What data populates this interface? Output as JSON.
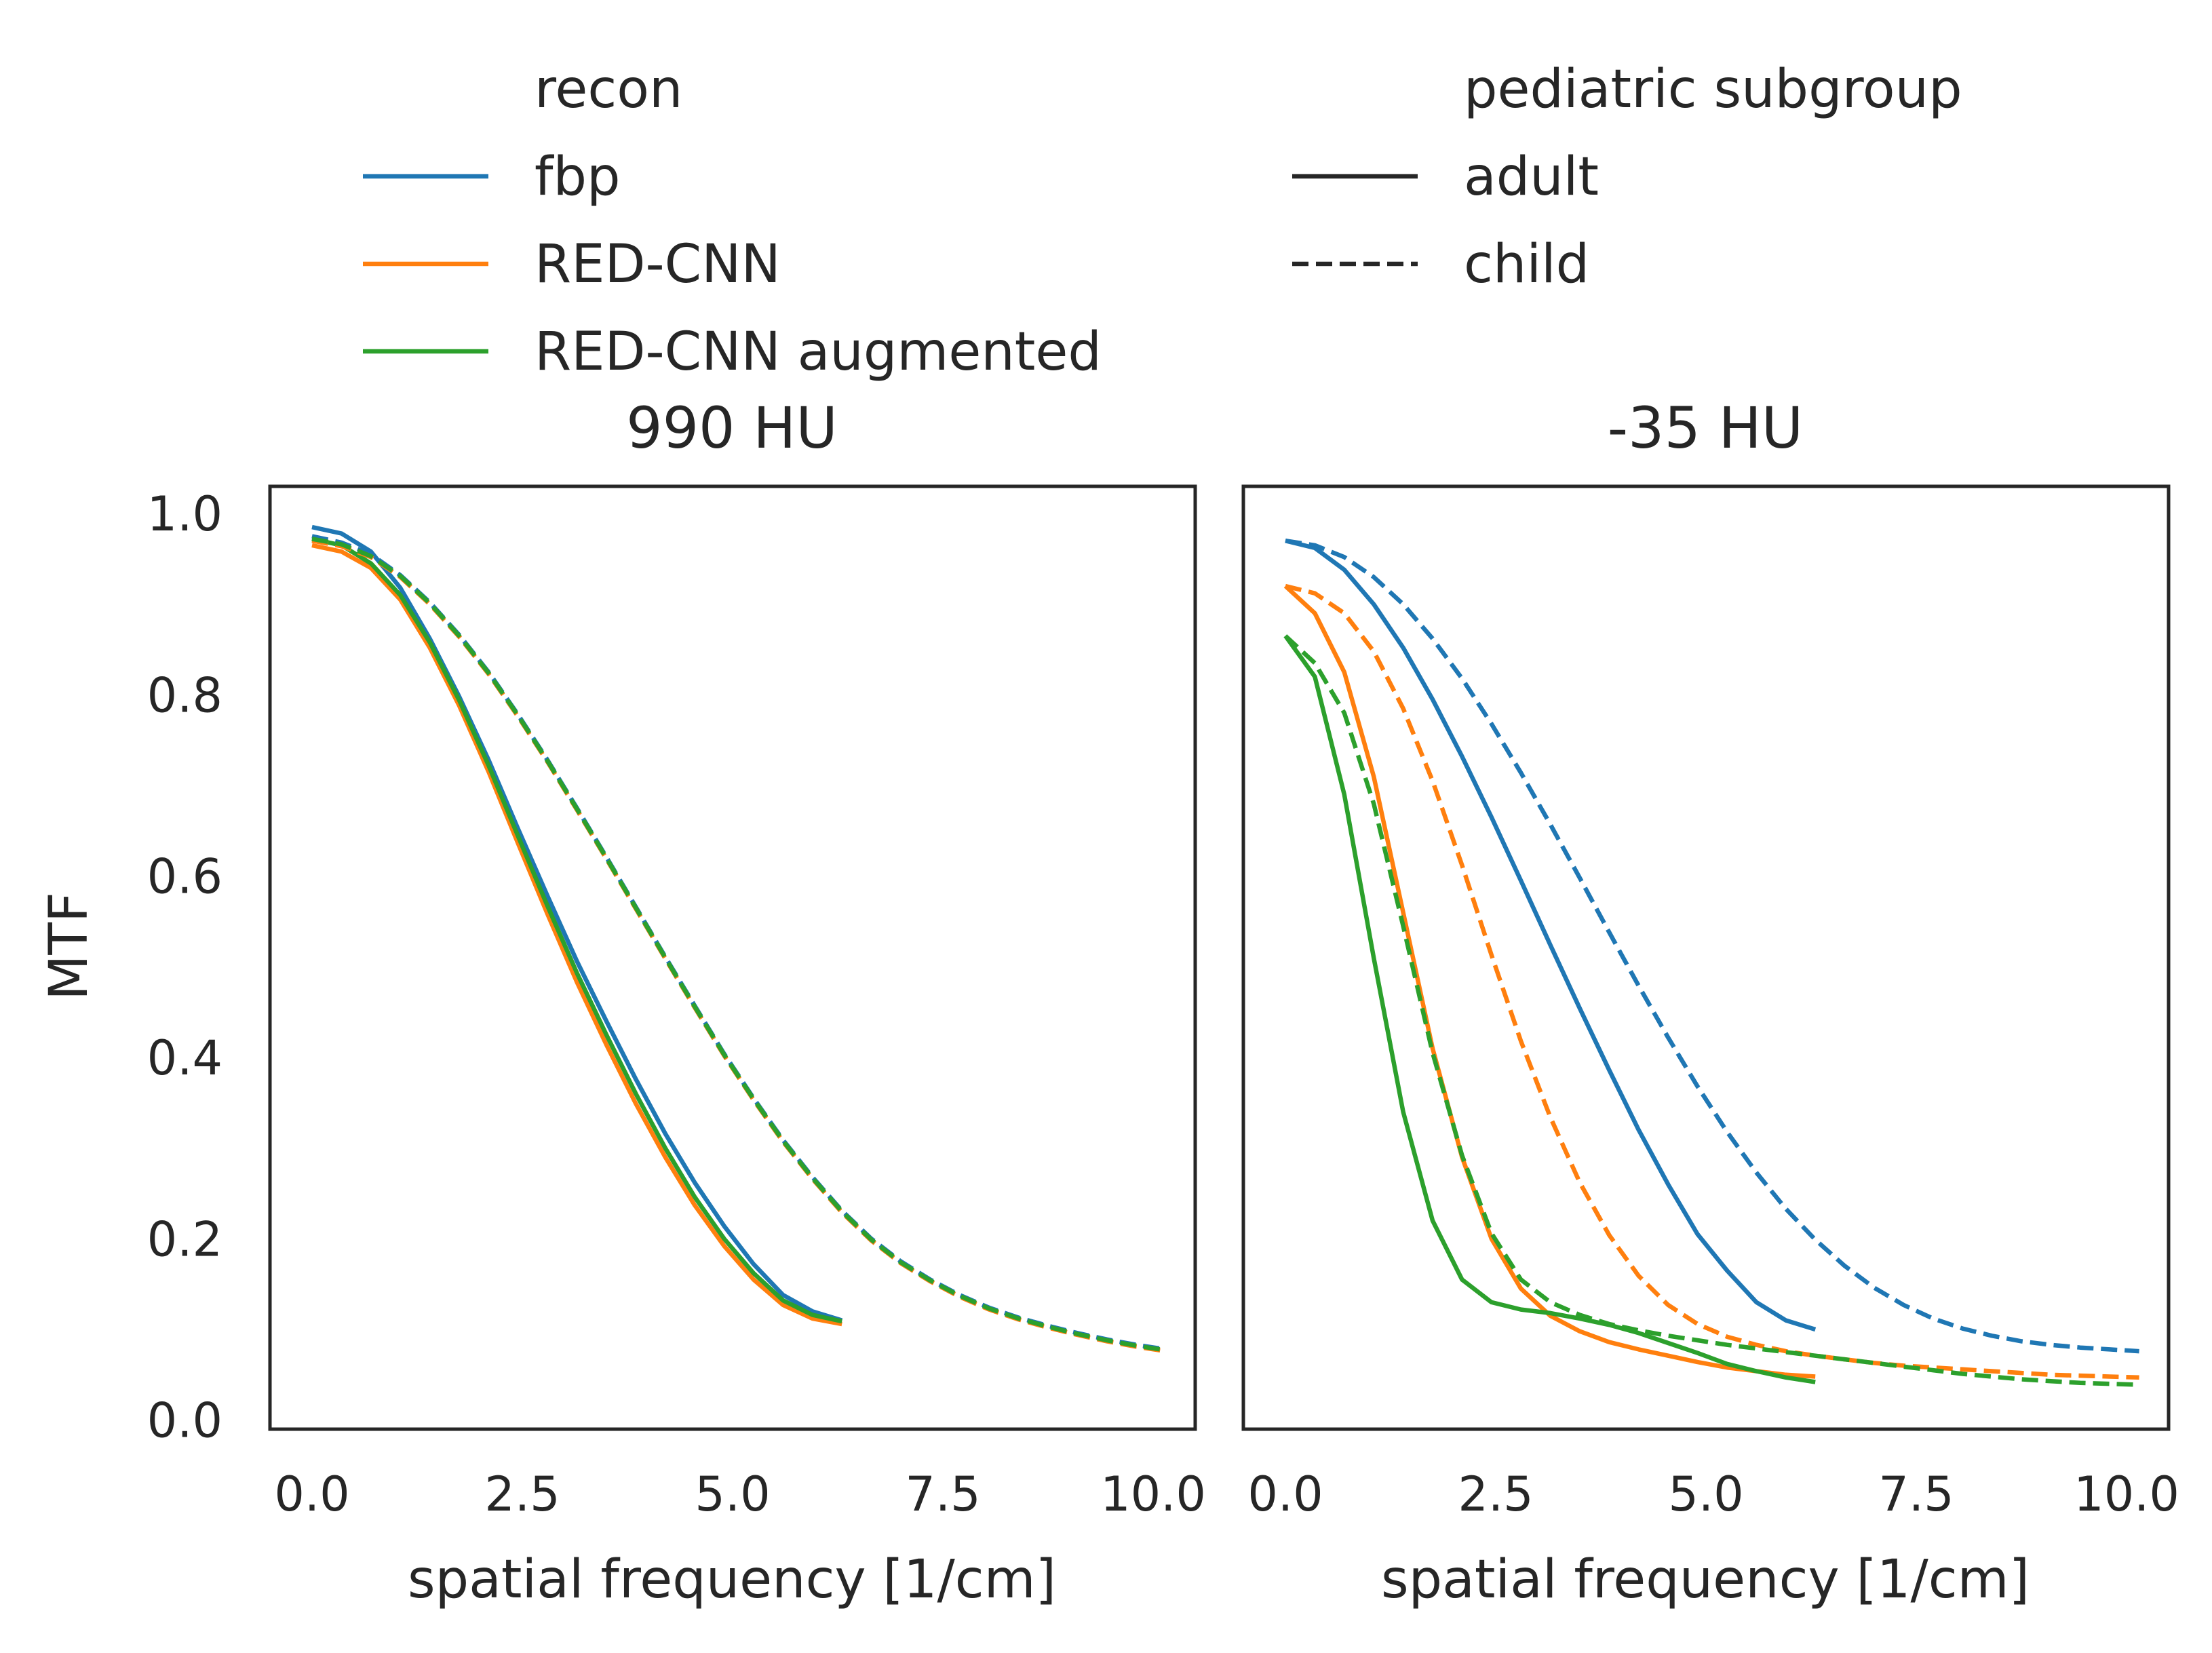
{
  "figure": {
    "legend_recon_title": "recon",
    "legend_group_title": "pediatric subgroup",
    "legend_recon": [
      {
        "label": "fbp",
        "color": "#1f77b4"
      },
      {
        "label": "RED-CNN",
        "color": "#ff7f0e"
      },
      {
        "label": "RED-CNN augmented",
        "color": "#2ca02c"
      }
    ],
    "legend_group": [
      {
        "label": "adult",
        "dash": "solid"
      },
      {
        "label": "child",
        "dash": "dashed"
      }
    ],
    "ylabel": "MTF",
    "xlabel": "spatial frequency [1/cm]"
  },
  "chart_data": [
    {
      "type": "line",
      "title": "990 HU",
      "xlabel": "spatial frequency [1/cm]",
      "ylabel": "MTF",
      "xlim": [
        -0.5,
        10.5
      ],
      "ylim": [
        -0.01,
        1.03
      ],
      "xticks": [
        "0.0",
        "2.5",
        "5.0",
        "7.5",
        "10.0"
      ],
      "yticks": [
        "0.0",
        "0.2",
        "0.4",
        "0.6",
        "0.8",
        "1.0"
      ],
      "grid": false,
      "series": [
        {
          "recon": "fbp",
          "group": "adult",
          "color": "#1f77b4",
          "dash": "solid",
          "x": [
            0,
            0.35,
            0.7,
            1.05,
            1.4,
            1.75,
            2.1,
            2.45,
            2.8,
            3.15,
            3.5,
            3.85,
            4.2,
            4.55,
            4.9,
            5.25,
            5.6,
            5.95,
            6.3
          ],
          "y": [
            0.985,
            0.978,
            0.958,
            0.918,
            0.862,
            0.798,
            0.728,
            0.652,
            0.578,
            0.506,
            0.44,
            0.376,
            0.316,
            0.262,
            0.214,
            0.172,
            0.138,
            0.12,
            0.11
          ]
        },
        {
          "recon": "RED-CNN",
          "group": "adult",
          "color": "#ff7f0e",
          "dash": "solid",
          "x": [
            0,
            0.35,
            0.7,
            1.05,
            1.4,
            1.75,
            2.1,
            2.45,
            2.8,
            3.15,
            3.5,
            3.85,
            4.2,
            4.55,
            4.9,
            5.25,
            5.6,
            5.95,
            6.3
          ],
          "y": [
            0.965,
            0.958,
            0.94,
            0.905,
            0.852,
            0.788,
            0.715,
            0.636,
            0.558,
            0.483,
            0.414,
            0.349,
            0.29,
            0.237,
            0.192,
            0.155,
            0.127,
            0.112,
            0.106
          ]
        },
        {
          "recon": "RED-CNN augmented",
          "group": "adult",
          "color": "#2ca02c",
          "dash": "solid",
          "x": [
            0,
            0.35,
            0.7,
            1.05,
            1.4,
            1.75,
            2.1,
            2.45,
            2.8,
            3.15,
            3.5,
            3.85,
            4.2,
            4.55,
            4.9,
            5.25,
            5.6,
            5.95,
            6.3
          ],
          "y": [
            0.972,
            0.965,
            0.945,
            0.91,
            0.858,
            0.794,
            0.722,
            0.644,
            0.567,
            0.493,
            0.425,
            0.36,
            0.3,
            0.246,
            0.2,
            0.162,
            0.132,
            0.116,
            0.109
          ]
        },
        {
          "recon": "fbp",
          "group": "child",
          "color": "#1f77b4",
          "dash": "dashed",
          "x": [
            0,
            0.35,
            0.7,
            1.05,
            1.4,
            1.75,
            2.1,
            2.45,
            2.8,
            3.15,
            3.5,
            3.85,
            4.2,
            4.55,
            4.9,
            5.25,
            5.6,
            5.95,
            6.3,
            6.65,
            7.0,
            7.35,
            7.7,
            8.05,
            8.4,
            8.75,
            9.1,
            9.45,
            9.8,
            10.15
          ],
          "y": [
            0.975,
            0.968,
            0.955,
            0.932,
            0.902,
            0.866,
            0.825,
            0.778,
            0.728,
            0.675,
            0.621,
            0.566,
            0.511,
            0.457,
            0.404,
            0.355,
            0.309,
            0.268,
            0.231,
            0.2,
            0.175,
            0.155,
            0.138,
            0.124,
            0.113,
            0.104,
            0.096,
            0.089,
            0.083,
            0.078
          ]
        },
        {
          "recon": "RED-CNN",
          "group": "child",
          "color": "#ff7f0e",
          "dash": "dashed",
          "x": [
            0,
            0.35,
            0.7,
            1.05,
            1.4,
            1.75,
            2.1,
            2.45,
            2.8,
            3.15,
            3.5,
            3.85,
            4.2,
            4.55,
            4.9,
            5.25,
            5.6,
            5.95,
            6.3,
            6.65,
            7.0,
            7.35,
            7.7,
            8.05,
            8.4,
            8.75,
            9.1,
            9.45,
            9.8,
            10.15
          ],
          "y": [
            0.97,
            0.964,
            0.952,
            0.93,
            0.9,
            0.864,
            0.823,
            0.776,
            0.726,
            0.673,
            0.619,
            0.564,
            0.509,
            0.455,
            0.402,
            0.353,
            0.307,
            0.266,
            0.229,
            0.198,
            0.173,
            0.153,
            0.136,
            0.122,
            0.111,
            0.102,
            0.094,
            0.087,
            0.081,
            0.076
          ]
        },
        {
          "recon": "RED-CNN augmented",
          "group": "child",
          "color": "#2ca02c",
          "dash": "dashed",
          "x": [
            0,
            0.35,
            0.7,
            1.05,
            1.4,
            1.75,
            2.1,
            2.45,
            2.8,
            3.15,
            3.5,
            3.85,
            4.2,
            4.55,
            4.9,
            5.25,
            5.6,
            5.95,
            6.3,
            6.65,
            7.0,
            7.35,
            7.7,
            8.05,
            8.4,
            8.75,
            9.1,
            9.45,
            9.8,
            10.15
          ],
          "y": [
            0.972,
            0.966,
            0.953,
            0.931,
            0.901,
            0.865,
            0.824,
            0.777,
            0.727,
            0.674,
            0.62,
            0.565,
            0.51,
            0.456,
            0.403,
            0.354,
            0.308,
            0.267,
            0.23,
            0.199,
            0.174,
            0.154,
            0.137,
            0.123,
            0.112,
            0.103,
            0.095,
            0.088,
            0.082,
            0.077
          ]
        }
      ]
    },
    {
      "type": "line",
      "title": "-35 HU",
      "xlabel": "spatial frequency [1/cm]",
      "ylabel": "",
      "xlim": [
        -0.5,
        10.5
      ],
      "ylim": [
        -0.01,
        1.03
      ],
      "xticks": [
        "0.0",
        "2.5",
        "5.0",
        "7.5",
        "10.0"
      ],
      "yticks": [],
      "grid": false,
      "series": [
        {
          "recon": "fbp",
          "group": "adult",
          "color": "#1f77b4",
          "dash": "solid",
          "x": [
            0,
            0.35,
            0.7,
            1.05,
            1.4,
            1.75,
            2.1,
            2.45,
            2.8,
            3.15,
            3.5,
            3.85,
            4.2,
            4.55,
            4.9,
            5.25,
            5.6,
            5.95,
            6.3
          ],
          "y": [
            0.97,
            0.962,
            0.938,
            0.9,
            0.852,
            0.795,
            0.732,
            0.665,
            0.595,
            0.524,
            0.454,
            0.386,
            0.32,
            0.26,
            0.205,
            0.165,
            0.13,
            0.11,
            0.1
          ]
        },
        {
          "recon": "RED-CNN",
          "group": "adult",
          "color": "#ff7f0e",
          "dash": "solid",
          "x": [
            0,
            0.35,
            0.7,
            1.05,
            1.4,
            1.75,
            2.1,
            2.45,
            2.8,
            3.15,
            3.5,
            3.85,
            4.2,
            4.55,
            4.9,
            5.25,
            5.6,
            5.95,
            6.3
          ],
          "y": [
            0.92,
            0.89,
            0.825,
            0.71,
            0.56,
            0.41,
            0.29,
            0.2,
            0.145,
            0.115,
            0.098,
            0.086,
            0.078,
            0.071,
            0.064,
            0.058,
            0.054,
            0.05,
            0.048
          ]
        },
        {
          "recon": "RED-CNN augmented",
          "group": "adult",
          "color": "#2ca02c",
          "dash": "solid",
          "x": [
            0,
            0.35,
            0.7,
            1.05,
            1.4,
            1.75,
            2.1,
            2.45,
            2.8,
            3.15,
            3.5,
            3.85,
            4.2,
            4.55,
            4.9,
            5.25,
            5.6,
            5.95,
            6.3
          ],
          "y": [
            0.865,
            0.82,
            0.69,
            0.51,
            0.34,
            0.22,
            0.155,
            0.13,
            0.122,
            0.118,
            0.112,
            0.105,
            0.096,
            0.085,
            0.074,
            0.062,
            0.054,
            0.047,
            0.042
          ]
        },
        {
          "recon": "fbp",
          "group": "child",
          "color": "#1f77b4",
          "dash": "dashed",
          "x": [
            0,
            0.35,
            0.7,
            1.05,
            1.4,
            1.75,
            2.1,
            2.45,
            2.8,
            3.15,
            3.5,
            3.85,
            4.2,
            4.55,
            4.9,
            5.25,
            5.6,
            5.95,
            6.3,
            6.65,
            7.0,
            7.35,
            7.7,
            8.05,
            8.4,
            8.75,
            9.1,
            9.45,
            9.8,
            10.15
          ],
          "y": [
            0.97,
            0.965,
            0.952,
            0.93,
            0.9,
            0.862,
            0.818,
            0.768,
            0.714,
            0.657,
            0.598,
            0.538,
            0.479,
            0.422,
            0.368,
            0.318,
            0.273,
            0.233,
            0.199,
            0.17,
            0.146,
            0.127,
            0.112,
            0.101,
            0.093,
            0.087,
            0.083,
            0.08,
            0.078,
            0.076
          ]
        },
        {
          "recon": "RED-CNN",
          "group": "child",
          "color": "#ff7f0e",
          "dash": "dashed",
          "x": [
            0,
            0.35,
            0.7,
            1.05,
            1.4,
            1.75,
            2.1,
            2.45,
            2.8,
            3.15,
            3.5,
            3.85,
            4.2,
            4.55,
            4.9,
            5.25,
            5.6,
            5.95,
            6.3,
            6.65,
            7.0,
            7.35,
            7.7,
            8.05,
            8.4,
            8.75,
            9.1,
            9.45,
            9.8,
            10.15
          ],
          "y": [
            0.92,
            0.912,
            0.89,
            0.848,
            0.785,
            0.705,
            0.612,
            0.513,
            0.418,
            0.334,
            0.262,
            0.204,
            0.159,
            0.127,
            0.106,
            0.092,
            0.083,
            0.076,
            0.071,
            0.067,
            0.063,
            0.06,
            0.058,
            0.056,
            0.054,
            0.052,
            0.05,
            0.049,
            0.048,
            0.047
          ]
        },
        {
          "recon": "RED-CNN augmented",
          "group": "child",
          "color": "#2ca02c",
          "dash": "dashed",
          "x": [
            0,
            0.35,
            0.7,
            1.05,
            1.4,
            1.75,
            2.1,
            2.45,
            2.8,
            3.15,
            3.5,
            3.85,
            4.2,
            4.55,
            4.9,
            5.25,
            5.6,
            5.95,
            6.3,
            6.65,
            7.0,
            7.35,
            7.7,
            8.05,
            8.4,
            8.75,
            9.1,
            9.45,
            9.8,
            10.15
          ],
          "y": [
            0.865,
            0.835,
            0.78,
            0.68,
            0.545,
            0.405,
            0.292,
            0.206,
            0.155,
            0.13,
            0.116,
            0.106,
            0.099,
            0.093,
            0.088,
            0.083,
            0.079,
            0.075,
            0.071,
            0.067,
            0.063,
            0.059,
            0.055,
            0.051,
            0.048,
            0.045,
            0.043,
            0.041,
            0.04,
            0.039
          ]
        }
      ]
    }
  ]
}
